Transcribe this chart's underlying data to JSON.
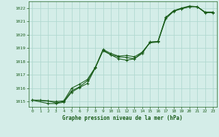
{
  "title": "Graphe pression niveau de la mer (hPa)",
  "bg_color": "#d4ede8",
  "grid_color": "#b0d8d0",
  "line_color": "#1a5c1a",
  "xlim": [
    -0.5,
    23.5
  ],
  "ylim": [
    1014.6,
    1022.5
  ],
  "yticks": [
    1015,
    1016,
    1017,
    1018,
    1019,
    1020,
    1021,
    1022
  ],
  "xticks": [
    0,
    1,
    2,
    3,
    4,
    5,
    6,
    7,
    8,
    9,
    10,
    11,
    12,
    13,
    14,
    15,
    16,
    17,
    18,
    19,
    20,
    21,
    22,
    23
  ],
  "line1_x": [
    0,
    1,
    2,
    3,
    4,
    5,
    6,
    7,
    8,
    9,
    10,
    11,
    12,
    13,
    14,
    15,
    16,
    17,
    18,
    19,
    20,
    21,
    22,
    23
  ],
  "line1_y": [
    1015.1,
    1015.1,
    1015.05,
    1014.9,
    1015.0,
    1015.8,
    1016.1,
    1016.55,
    1017.5,
    1018.8,
    1018.5,
    1018.35,
    1018.3,
    1018.2,
    1018.6,
    1019.45,
    1019.5,
    1021.3,
    1021.8,
    1021.95,
    1022.1,
    1022.1,
    1021.7,
    1021.7
  ],
  "line2_x": [
    0,
    2,
    3,
    4,
    5,
    6,
    7,
    8,
    9,
    10,
    11,
    12,
    13,
    14,
    15,
    16,
    17,
    18,
    19,
    20,
    21,
    22,
    23
  ],
  "line2_y": [
    1015.1,
    1014.85,
    1014.85,
    1014.95,
    1015.7,
    1016.05,
    1016.35,
    1017.5,
    1018.85,
    1018.5,
    1018.2,
    1018.1,
    1018.2,
    1018.7,
    1019.4,
    1019.45,
    1021.2,
    1021.75,
    1021.95,
    1022.1,
    1022.1,
    1021.65,
    1021.65
  ],
  "line3_x": [
    0,
    3,
    4,
    5,
    6,
    7,
    8,
    9,
    10,
    11,
    12,
    13,
    14,
    15,
    16,
    17,
    18,
    19,
    20,
    21,
    22,
    23
  ],
  "line3_y": [
    1015.1,
    1015.0,
    1015.05,
    1016.0,
    1016.3,
    1016.65,
    1017.55,
    1018.9,
    1018.6,
    1018.4,
    1018.45,
    1018.35,
    1018.7,
    1019.45,
    1019.5,
    1021.3,
    1021.8,
    1022.0,
    1022.15,
    1022.1,
    1021.7,
    1021.67
  ]
}
